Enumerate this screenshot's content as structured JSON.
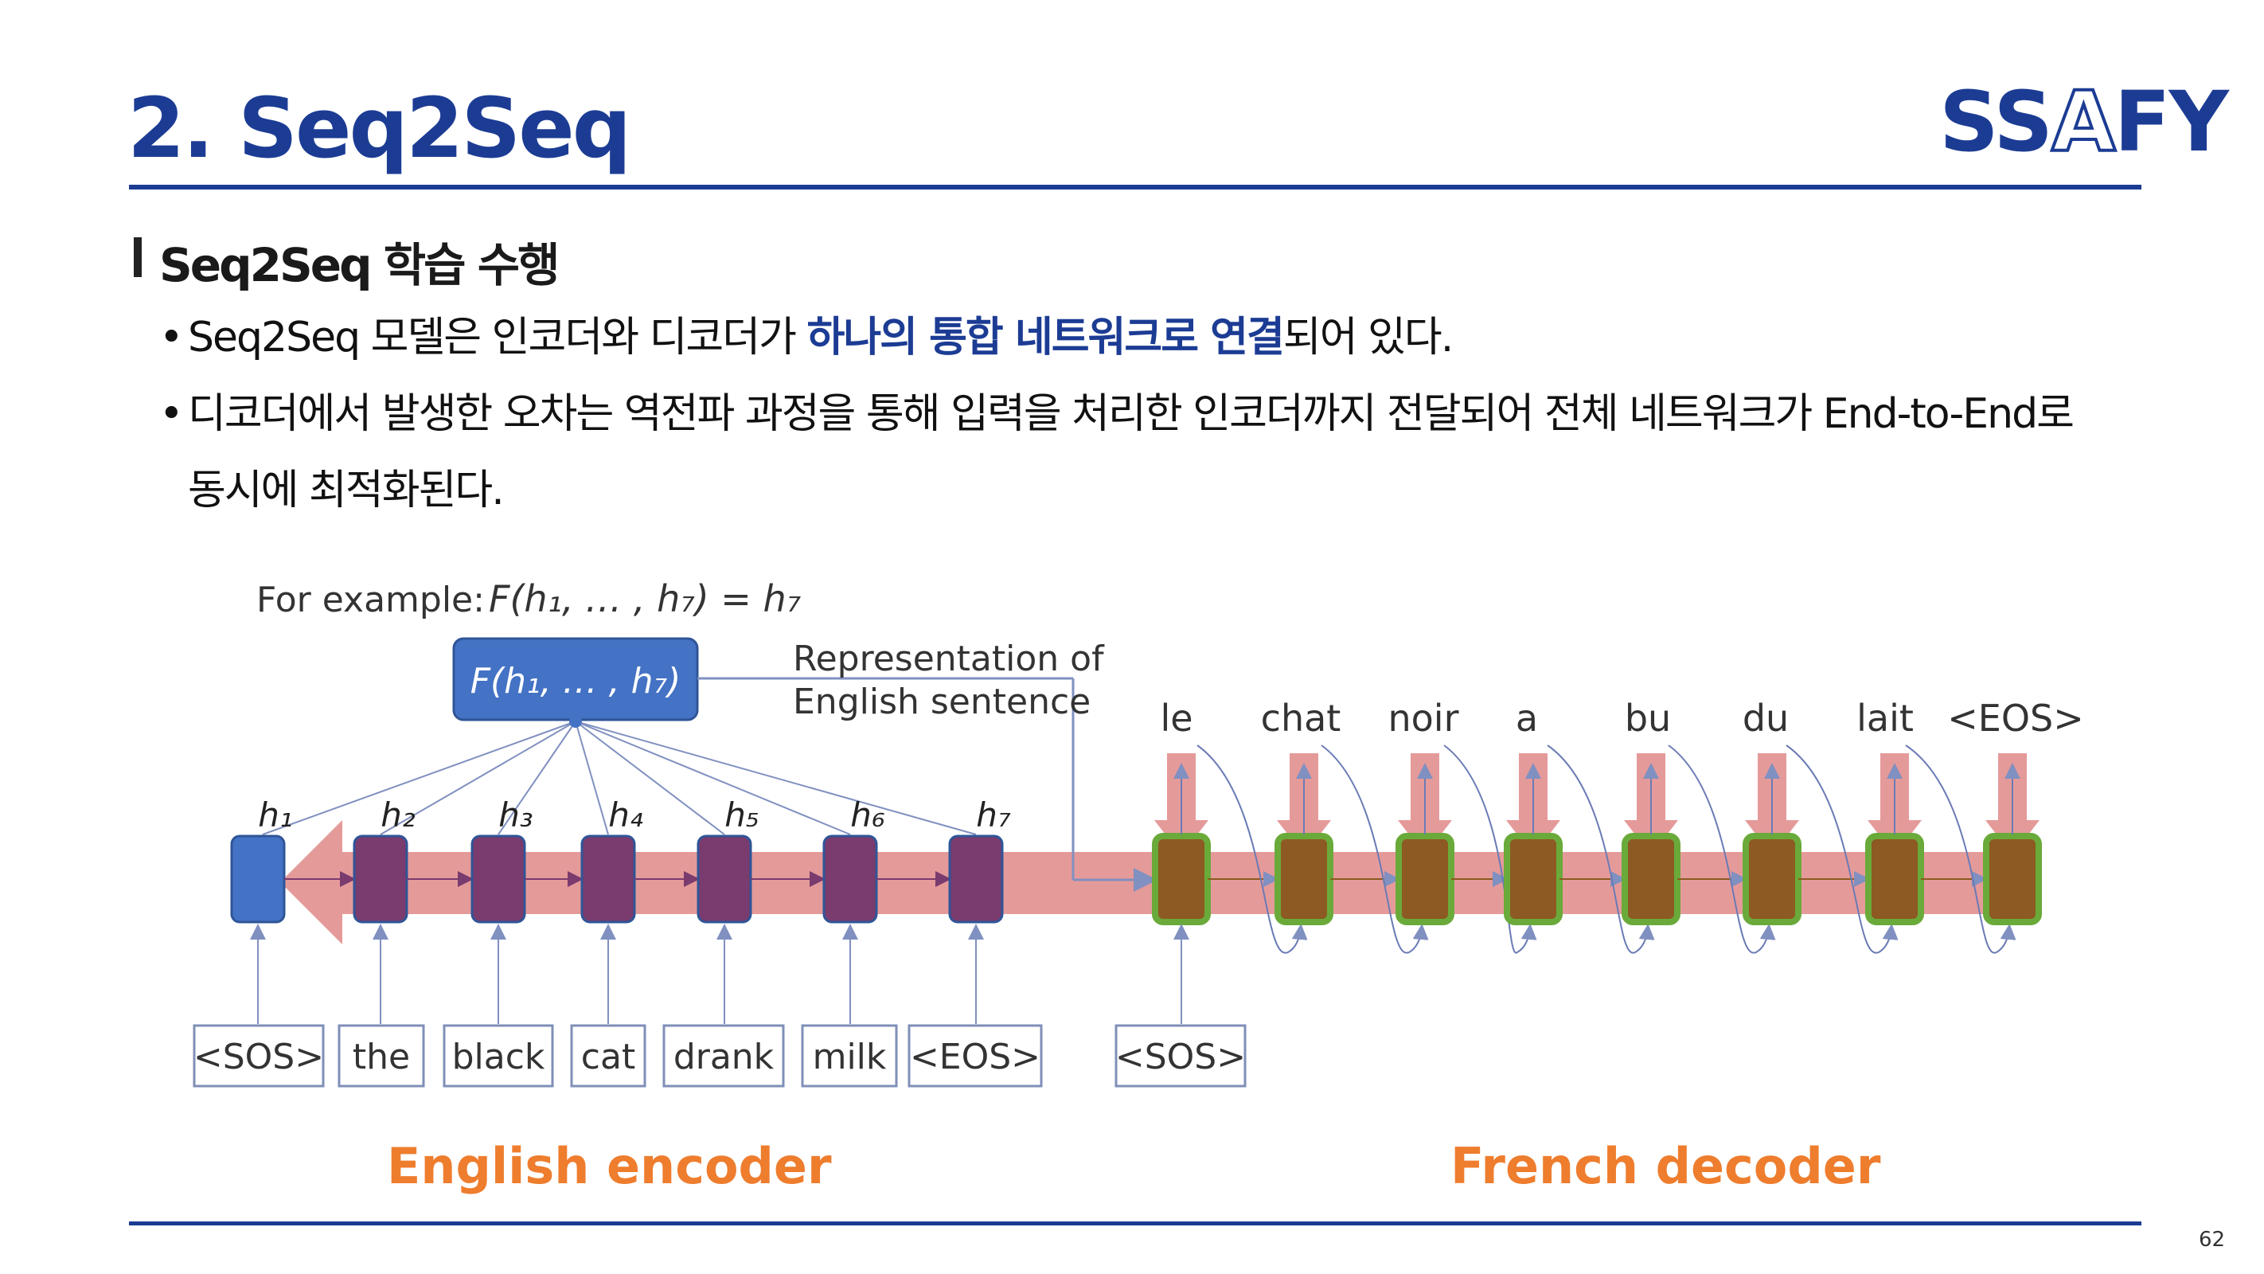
{
  "slide": {
    "title": "2. Seq2Seq",
    "logo_a": "SS",
    "logo_b": "A",
    "logo_c": "FY",
    "page_number": "62"
  },
  "section": {
    "heading": "Seq2Seq 학습 수행"
  },
  "bullets": {
    "b1_pre": "Seq2Seq 모델은 인코더와 디코더가 ",
    "b1_highlight": "하나의 통합 네트워크로 연결",
    "b1_post": "되어 있다.",
    "b2_line1": "디코더에서 발생한 오차는 역전파 과정을 통해 입력을 처리한 인코더까지 전달되어 전체 네트워크가 End-to-End로",
    "b2_line2": "동시에 최적화된다."
  },
  "diagram": {
    "example_label": "For example:",
    "example_formula": "F(h₁, … , h₇) = h₇",
    "box_formula": "F(h₁, … , h₇)",
    "representation_line1": "Representation of",
    "representation_line2": "English sentence",
    "hidden_states": [
      "h₁",
      "h₂",
      "h₃",
      "h₄",
      "h₅",
      "h₆",
      "h₇"
    ],
    "encoder_inputs": [
      "<SOS>",
      "the",
      "black",
      "cat",
      "drank",
      "milk",
      "<EOS>"
    ],
    "decoder_input": "<SOS>",
    "decoder_outputs": [
      "le",
      "chat",
      "noir",
      "a",
      "bu",
      "du",
      "lait",
      "<EOS>"
    ],
    "encoder_caption": "English encoder",
    "decoder_caption": "French decoder",
    "colors": {
      "encoder_first": "#4472c4",
      "encoder_cell": "#7a3b6e",
      "decoder_cell": "#8c5a22",
      "decoder_border": "#6aaa3a",
      "backprop_band": "#e59a9a",
      "caption": "#ee7d2e"
    }
  }
}
